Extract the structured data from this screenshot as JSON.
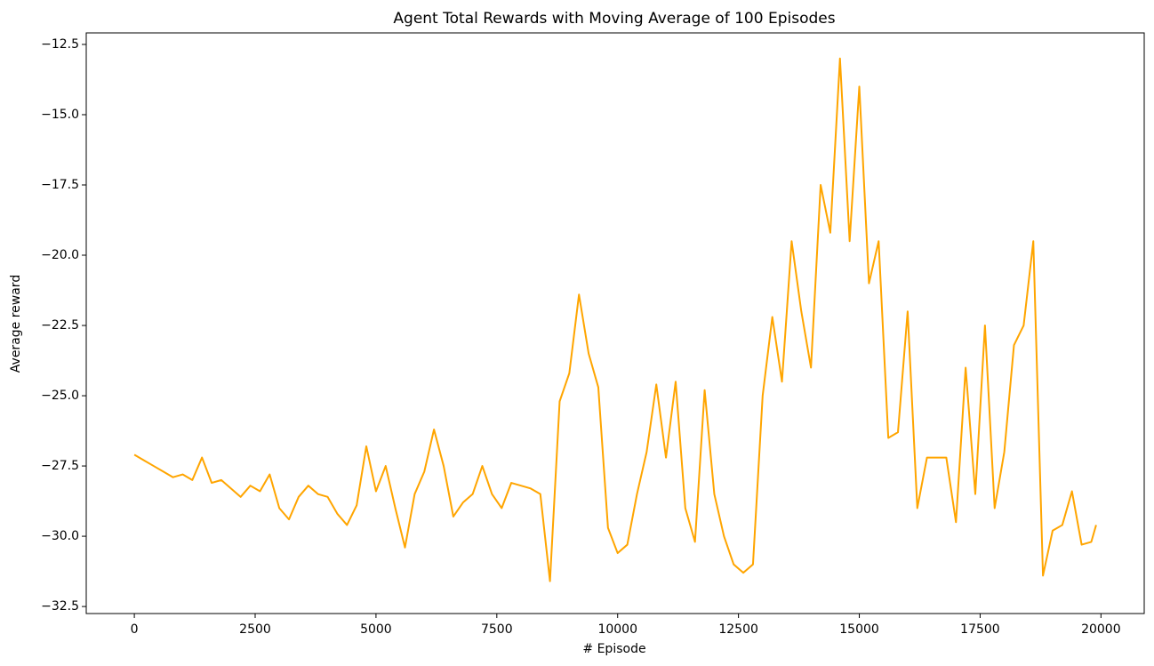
{
  "chart_data": {
    "type": "line",
    "title": "Agent Total Rewards with Moving Average of 100 Episodes",
    "x_label": "# Episode",
    "y_label": "Average reward",
    "color": "#ffa500",
    "xlim": [
      -995,
      20895
    ],
    "ylim": [
      -32.75,
      -12.09
    ],
    "xticks": [
      0,
      2500,
      5000,
      7500,
      10000,
      12500,
      15000,
      17500,
      20000
    ],
    "yticks": [
      {
        "value": -32.5,
        "label": "−32.5"
      },
      {
        "value": -30.0,
        "label": "−30.0"
      },
      {
        "value": -27.5,
        "label": "−27.5"
      },
      {
        "value": -25.0,
        "label": "−25.0"
      },
      {
        "value": -22.5,
        "label": "−22.5"
      },
      {
        "value": -20.0,
        "label": "−20.0"
      },
      {
        "value": -17.5,
        "label": "−17.5"
      },
      {
        "value": -15.0,
        "label": "−15.0"
      },
      {
        "value": -12.5,
        "label": "−12.5"
      }
    ],
    "x": [
      0,
      200,
      400,
      600,
      800,
      1000,
      1200,
      1400,
      1600,
      1800,
      2000,
      2200,
      2400,
      2600,
      2800,
      3000,
      3200,
      3400,
      3600,
      3800,
      4000,
      4200,
      4400,
      4600,
      4800,
      5000,
      5200,
      5400,
      5600,
      5800,
      6000,
      6200,
      6400,
      6600,
      6800,
      7000,
      7200,
      7400,
      7600,
      7800,
      8000,
      8200,
      8400,
      8600,
      8800,
      9000,
      9200,
      9400,
      9600,
      9800,
      10000,
      10200,
      10400,
      10600,
      10800,
      11000,
      11200,
      11400,
      11600,
      11800,
      12000,
      12200,
      12400,
      12600,
      12800,
      13000,
      13200,
      13400,
      13600,
      13800,
      14000,
      14200,
      14400,
      14600,
      14800,
      15000,
      15200,
      15400,
      15600,
      15800,
      16000,
      16200,
      16400,
      16600,
      16800,
      17000,
      17200,
      17400,
      17600,
      17800,
      18000,
      18200,
      18400,
      18600,
      18800,
      19000,
      19200,
      19400,
      19600,
      19800,
      19900
    ],
    "values": [
      -27.1,
      -27.3,
      -27.5,
      -27.7,
      -27.9,
      -27.8,
      -28.0,
      -27.2,
      -28.1,
      -28.0,
      -28.3,
      -28.6,
      -28.2,
      -28.4,
      -27.8,
      -29.0,
      -29.4,
      -28.6,
      -28.2,
      -28.5,
      -28.6,
      -29.2,
      -29.6,
      -28.9,
      -26.8,
      -28.4,
      -27.5,
      -29.0,
      -30.4,
      -28.5,
      -27.7,
      -26.2,
      -27.5,
      -29.3,
      -28.8,
      -28.5,
      -27.5,
      -28.5,
      -29.0,
      -28.1,
      -28.2,
      -28.3,
      -28.5,
      -31.6,
      -25.2,
      -24.2,
      -21.4,
      -23.5,
      -24.7,
      -29.7,
      -30.6,
      -30.3,
      -28.5,
      -27.0,
      -24.6,
      -27.2,
      -24.5,
      -29.0,
      -30.2,
      -24.8,
      -28.5,
      -30.0,
      -31.0,
      -31.3,
      -31.0,
      -25.0,
      -22.2,
      -24.5,
      -19.5,
      -22.0,
      -24.0,
      -17.5,
      -19.2,
      -13.0,
      -19.5,
      -14.0,
      -21.0,
      -19.5,
      -26.5,
      -26.3,
      -22.0,
      -29.0,
      -27.2,
      -27.2,
      -27.2,
      -29.5,
      -24.0,
      -28.5,
      -22.5,
      -29.0,
      -27.0,
      -23.2,
      -22.5,
      -19.5,
      -31.4,
      -29.8,
      -29.6,
      -28.4,
      -30.3,
      -30.2,
      -29.6
    ]
  }
}
